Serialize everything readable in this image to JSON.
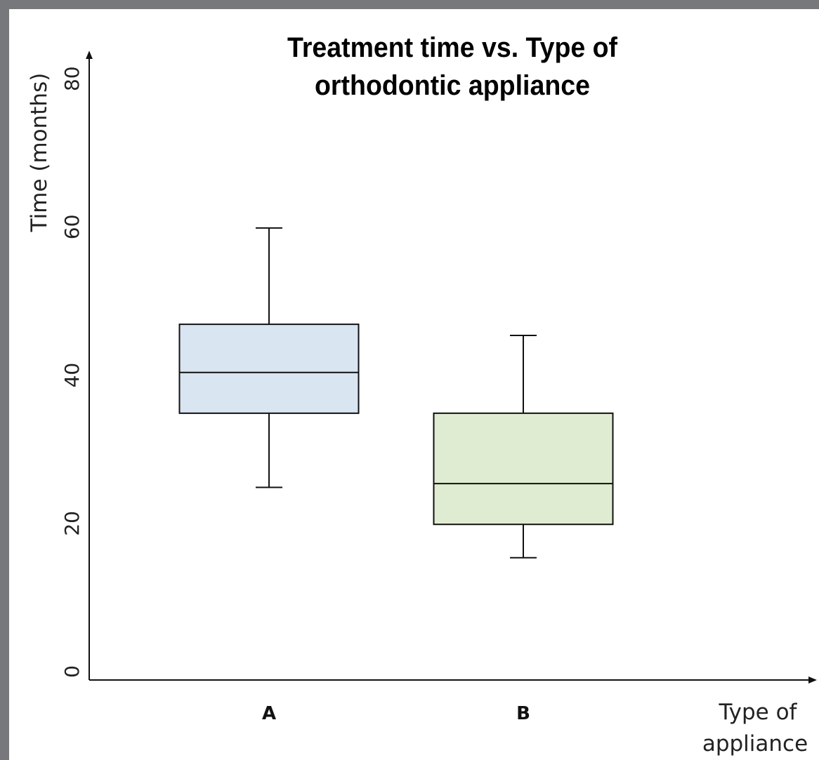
{
  "chart_data": {
    "type": "boxplot",
    "title_lines": [
      "Treatment time vs. Type of",
      "orthodontic appliance"
    ],
    "ylabel": "Time (months)",
    "xlabel_lines": [
      "Type of",
      "appliance"
    ],
    "ylim": [
      0,
      80
    ],
    "yticks": [
      0,
      20,
      40,
      60,
      80
    ],
    "grid": false,
    "categories": [
      "A",
      "B"
    ],
    "boxes": [
      {
        "category": "A",
        "min": 26,
        "q1": 36,
        "median": 41.5,
        "q3": 48,
        "max": 61,
        "fill": "#dae5f2"
      },
      {
        "category": "B",
        "min": 16.5,
        "q1": 21,
        "median": 26.5,
        "q3": 36,
        "max": 46.5,
        "fill": "#e0ecd2"
      }
    ]
  },
  "colors": {
    "background_frame": "#76787c",
    "panel": "#ffffff",
    "stroke": "#111111"
  }
}
